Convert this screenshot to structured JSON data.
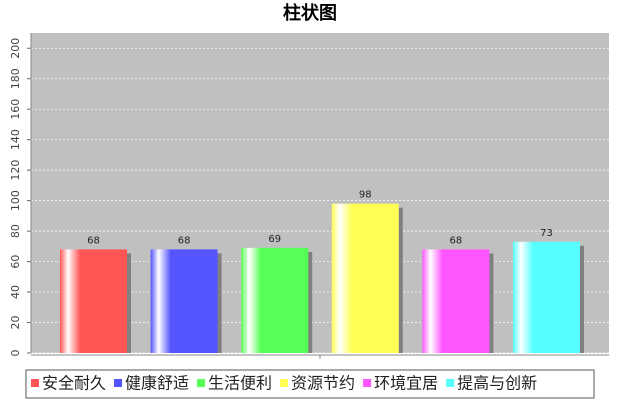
{
  "chart_data": {
    "type": "bar",
    "title": "柱状图",
    "categories": [
      "安全耐久",
      "健康舒适",
      "生活便利",
      "资源节约",
      "环境宜居",
      "提高与创新"
    ],
    "values": [
      68,
      68,
      69,
      98,
      68,
      73
    ],
    "colors": [
      "#ff5555",
      "#5555ff",
      "#55ff55",
      "#ffff55",
      "#ff55ff",
      "#55ffff"
    ],
    "ylim": [
      0,
      210
    ],
    "yticks": [
      0,
      20,
      40,
      60,
      80,
      100,
      120,
      140,
      160,
      180,
      200
    ],
    "grid": true
  }
}
